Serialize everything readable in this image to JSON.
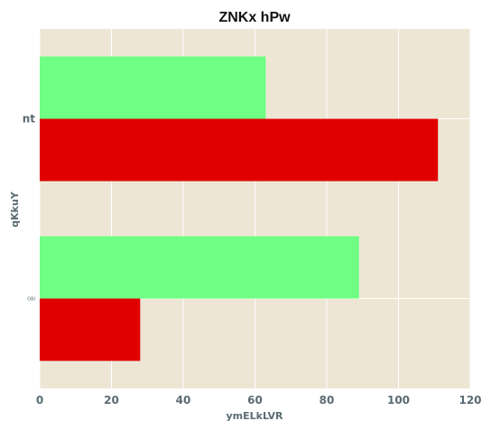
{
  "chart": {
    "title": "ZNKx hPw",
    "xlabel": "ymELkLVR",
    "ylabel": "qKkuY"
  },
  "chart_data": {
    "type": "bar",
    "orientation": "horizontal",
    "title": "ZNKx hPw",
    "xlabel": "ymELkLVR",
    "ylabel": "qKkuY",
    "categories": [
      "nt",
      "OBI"
    ],
    "series": [
      {
        "values": [
          63,
          89
        ],
        "color": "#6eff84"
      },
      {
        "values": [
          111,
          28
        ],
        "color": "#e00000"
      }
    ],
    "xlim": [
      0,
      120
    ],
    "xticks": [
      0,
      20,
      40,
      60,
      80,
      100,
      120
    ],
    "grid": true,
    "background": "#eee6d4",
    "legend": "none"
  }
}
